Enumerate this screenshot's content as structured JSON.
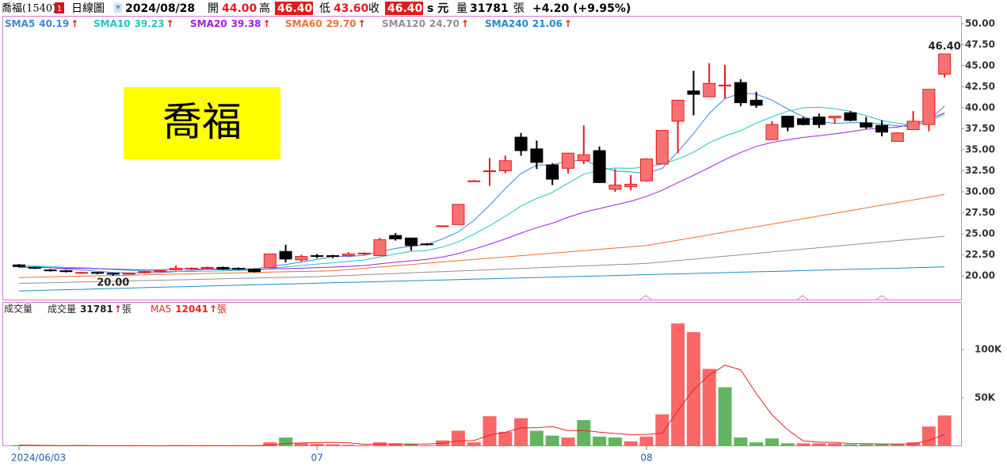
{
  "header": {
    "name": "喬福(1540)",
    "badge": "1",
    "period": "日線圖",
    "date": "2024/08/28",
    "open_label": "開",
    "open": "44.00",
    "high_label": "高",
    "high": "46.40",
    "low_label": "低",
    "low": "43.60",
    "close_label": "收",
    "close": "46.40",
    "currency": "s 元",
    "volume_label": "量",
    "volume": "31781",
    "volume_unit": "張",
    "change": "+4.20 (+9.95%)"
  },
  "watermark": "喬福",
  "chart_data": [
    {
      "type": "candlestick",
      "up_color": "#f87171",
      "up_edge": "#e41b1b",
      "down_color": "#000000",
      "open": [
        21.3,
        21.0,
        20.7,
        20.6,
        20.3,
        20.4,
        20.3,
        20.2,
        20.4,
        20.5,
        20.7,
        20.8,
        20.9,
        21.0,
        20.9,
        20.8,
        21.0,
        22.9,
        21.9,
        22.4,
        22.4,
        22.4,
        22.6,
        22.4,
        24.8,
        24.5,
        23.8,
        25.95,
        26.1,
        31.3,
        32.4,
        32.5,
        36.5,
        35.1,
        33.2,
        32.8,
        33.7,
        34.9,
        30.3,
        30.6,
        31.3,
        33.3,
        38.4,
        42.0,
        41.3,
        42.6,
        43.0,
        40.9,
        36.2,
        39.0,
        38.7,
        38.9,
        38.8,
        39.4,
        38.2,
        37.9,
        36.0,
        37.4,
        38.0,
        44.0
      ],
      "high": [
        21.4,
        21.1,
        20.8,
        20.7,
        20.5,
        20.45,
        20.35,
        20.4,
        20.6,
        20.7,
        21.2,
        21.0,
        21.1,
        21.1,
        21.0,
        20.9,
        22.6,
        23.7,
        22.5,
        22.6,
        22.5,
        22.8,
        22.8,
        24.5,
        25.1,
        24.5,
        23.9,
        25.95,
        28.5,
        31.4,
        34.0,
        34.3,
        37.0,
        36.1,
        33.4,
        34.6,
        37.9,
        35.4,
        32.7,
        32.0,
        34.0,
        37.3,
        40.9,
        44.4,
        45.3,
        45.1,
        43.4,
        41.9,
        38.4,
        39.0,
        38.9,
        39.3,
        39.0,
        39.6,
        38.9,
        38.5,
        37.1,
        39.6,
        42.2,
        46.4
      ],
      "low": [
        21.0,
        20.8,
        20.5,
        20.4,
        20.3,
        20.2,
        20.0,
        20.2,
        20.3,
        20.4,
        20.6,
        20.7,
        20.8,
        20.7,
        20.7,
        20.4,
        21.0,
        21.6,
        21.7,
        22.1,
        22.1,
        22.3,
        22.5,
        22.4,
        24.2,
        23.0,
        23.6,
        25.95,
        26.1,
        31.2,
        30.7,
        32.2,
        34.3,
        32.7,
        30.8,
        32.2,
        33.3,
        31.1,
        30.0,
        30.2,
        31.2,
        33.3,
        34.6,
        39.1,
        41.3,
        41.1,
        40.2,
        40.0,
        36.2,
        37.2,
        37.9,
        37.6,
        38.1,
        38.4,
        37.5,
        36.6,
        36.0,
        37.4,
        37.2,
        43.6
      ],
      "close": [
        21.1,
        20.9,
        20.6,
        20.5,
        20.4,
        20.3,
        20.2,
        20.3,
        20.5,
        20.6,
        20.9,
        20.9,
        21.0,
        20.8,
        20.8,
        20.5,
        22.6,
        22.0,
        22.3,
        22.3,
        22.3,
        22.6,
        22.7,
        24.3,
        24.4,
        23.6,
        23.7,
        25.95,
        28.5,
        31.3,
        32.5,
        33.7,
        34.9,
        33.5,
        31.5,
        34.6,
        34.4,
        31.1,
        30.8,
        30.9,
        33.9,
        37.3,
        40.9,
        41.6,
        42.9,
        42.7,
        40.6,
        40.3,
        38.0,
        37.7,
        38.0,
        38.0,
        39.0,
        38.5,
        37.7,
        37.1,
        37.0,
        38.4,
        42.2,
        46.4
      ],
      "series": [
        {
          "name": "SMA5",
          "color": "#3f86d8",
          "last_label": "40.19",
          "trend": "↑",
          "values": [
            21.2,
            21.1,
            20.95,
            20.8,
            20.7,
            20.54,
            20.4,
            20.34,
            20.34,
            20.38,
            20.5,
            20.64,
            20.78,
            20.84,
            20.88,
            20.8,
            21.14,
            21.34,
            21.64,
            21.94,
            22.3,
            22.3,
            22.44,
            22.84,
            23.26,
            23.52,
            23.74,
            24.39,
            25.23,
            26.61,
            28.39,
            30.39,
            32.18,
            33.18,
            33.22,
            33.64,
            33.78,
            33.02,
            32.48,
            32.36,
            32.22,
            32.8,
            34.76,
            36.92,
            39.32,
            41.08,
            41.74,
            41.62,
            40.9,
            39.86,
            38.92,
            38.4,
            38.14,
            38.24,
            38.24,
            38.06,
            37.86,
            37.74,
            38.48,
            40.19
          ]
        },
        {
          "name": "SMA10",
          "color": "#1fc3c8",
          "last_label": "39.23",
          "trend": "↑",
          "values": [
            21.2,
            21.15,
            21.1,
            21.0,
            20.95,
            20.87,
            20.75,
            20.65,
            20.57,
            20.54,
            20.52,
            20.52,
            20.56,
            20.59,
            20.63,
            20.65,
            20.89,
            21.06,
            21.24,
            21.41,
            21.55,
            21.72,
            21.89,
            22.24,
            22.6,
            22.91,
            23.02,
            23.42,
            24.04,
            24.94,
            25.96,
            27.07,
            28.29,
            29.21,
            29.92,
            31.02,
            32.09,
            32.6,
            32.83,
            32.79,
            32.93,
            33.29,
            33.89,
            34.7,
            35.84,
            36.65,
            37.27,
            38.19,
            38.91,
            39.59,
            40.0,
            40.07,
            39.88,
            39.57,
            39.05,
            38.49,
            38.13,
            37.94,
            38.36,
            39.23
          ]
        },
        {
          "name": "SMA20",
          "color": "#a11fe0",
          "last_label": "39.38",
          "trend": "↑",
          "values": [
            21.0,
            21.0,
            20.95,
            20.9,
            20.9,
            20.85,
            20.8,
            20.75,
            20.7,
            20.7,
            20.85,
            20.8,
            20.78,
            20.75,
            20.75,
            20.76,
            20.82,
            20.86,
            20.91,
            20.98,
            21.04,
            21.12,
            21.23,
            21.42,
            21.62,
            21.78,
            21.96,
            22.24,
            22.64,
            23.18,
            23.76,
            24.4,
            25.09,
            25.73,
            26.26,
            26.97,
            27.56,
            28.01,
            28.44,
            28.87,
            29.45,
            30.18,
            31.09,
            31.96,
            32.88,
            33.84,
            34.68,
            35.4,
            35.87,
            36.19,
            36.47,
            36.68,
            36.89,
            37.14,
            37.45,
            37.57,
            37.7,
            38.07,
            38.64,
            39.38
          ]
        },
        {
          "name": "SMA60",
          "color": "#f0702c",
          "last_label": "29.70",
          "trend": "↑",
          "values": [
            19.8,
            19.84,
            19.88,
            19.92,
            19.96,
            20.0,
            20.04,
            20.08,
            20.12,
            20.16,
            20.2,
            20.24,
            20.28,
            20.32,
            20.36,
            20.4,
            20.44,
            20.48,
            20.52,
            20.56,
            20.6,
            20.75,
            20.9,
            21.05,
            21.2,
            21.35,
            21.5,
            21.65,
            21.8,
            21.95,
            22.1,
            22.25,
            22.4,
            22.55,
            22.7,
            22.85,
            23.0,
            23.15,
            23.3,
            23.45,
            23.6,
            23.92,
            24.24,
            24.56,
            24.88,
            25.2,
            25.52,
            25.84,
            26.16,
            26.48,
            26.8,
            27.12,
            27.44,
            27.76,
            28.08,
            28.4,
            28.72,
            29.04,
            29.36,
            29.7
          ]
        },
        {
          "name": "SMA120",
          "color": "#909090",
          "last_label": "24.70",
          "trend": "↑",
          "values": [
            19.1,
            19.14,
            19.18,
            19.23,
            19.27,
            19.31,
            19.35,
            19.39,
            19.44,
            19.48,
            19.52,
            19.56,
            19.6,
            19.65,
            19.69,
            19.73,
            19.77,
            19.81,
            19.86,
            19.9,
            19.98,
            20.05,
            20.13,
            20.2,
            20.28,
            20.35,
            20.43,
            20.5,
            20.58,
            20.65,
            20.73,
            20.8,
            20.88,
            20.95,
            21.03,
            21.1,
            21.18,
            21.25,
            21.33,
            21.4,
            21.48,
            21.65,
            21.82,
            21.99,
            22.16,
            22.33,
            22.5,
            22.67,
            22.84,
            23.01,
            23.18,
            23.35,
            23.52,
            23.69,
            23.86,
            24.03,
            24.2,
            24.37,
            24.54,
            24.7
          ]
        },
        {
          "name": "SMA240",
          "color": "#1b8dc9",
          "last_label": "21.06",
          "trend": "↑",
          "values": [
            18.2,
            18.25,
            18.3,
            18.35,
            18.39,
            18.44,
            18.49,
            18.54,
            18.59,
            18.64,
            18.69,
            18.73,
            18.78,
            18.83,
            18.88,
            18.93,
            18.98,
            19.02,
            19.07,
            19.12,
            19.17,
            19.22,
            19.27,
            19.31,
            19.36,
            19.41,
            19.46,
            19.51,
            19.56,
            19.61,
            19.65,
            19.7,
            19.75,
            19.8,
            19.85,
            19.9,
            19.94,
            19.99,
            20.04,
            20.09,
            20.14,
            20.19,
            20.23,
            20.28,
            20.33,
            20.38,
            20.43,
            20.48,
            20.52,
            20.57,
            20.62,
            20.67,
            20.72,
            20.77,
            20.81,
            20.86,
            20.91,
            20.96,
            21.01,
            21.06
          ]
        }
      ],
      "annotations": [
        {
          "label": "46.40",
          "value": 46.4
        },
        {
          "label": "20.00",
          "value": 20.0
        }
      ],
      "ylim": [
        17.17,
        50.94
      ],
      "yticks": [
        {
          "value": 20,
          "label": "20.00"
        },
        {
          "value": 22.5,
          "label": "22.50"
        },
        {
          "value": 25,
          "label": "25.00"
        },
        {
          "value": 27.5,
          "label": "27.50"
        },
        {
          "value": 30,
          "label": "30.00"
        },
        {
          "value": 32.5,
          "label": "32.50"
        },
        {
          "value": 35,
          "label": "35.00"
        },
        {
          "value": 37.5,
          "label": "37.50"
        },
        {
          "value": 40,
          "label": "40.00"
        },
        {
          "value": 42.5,
          "label": "42.50"
        },
        {
          "value": 45,
          "label": "45.00"
        },
        {
          "value": 47.5,
          "label": "47.50"
        },
        {
          "value": 50,
          "label": "50.00"
        }
      ]
    },
    {
      "type": "bar",
      "title": "成交量",
      "categories": [
        "2024/06/03",
        null,
        null,
        null,
        null,
        null,
        null,
        null,
        null,
        null,
        null,
        null,
        null,
        null,
        null,
        null,
        null,
        null,
        null,
        "07",
        null,
        null,
        null,
        null,
        null,
        null,
        null,
        null,
        null,
        null,
        null,
        null,
        null,
        null,
        null,
        null,
        null,
        null,
        null,
        null,
        "08",
        null,
        null,
        null,
        null,
        null,
        null,
        null,
        null,
        null,
        null,
        null,
        null,
        null,
        null,
        null,
        null,
        null,
        null,
        null
      ],
      "series": [
        {
          "name": "成交量",
          "up_color": "#fb6666",
          "down_color": "#62b462",
          "last_label": "31781",
          "trend": "↑",
          "unit": "張",
          "values": [
            1200,
            800,
            500,
            500,
            1000,
            500,
            500,
            500,
            500,
            400,
            1000,
            500,
            500,
            500,
            500,
            500,
            4000,
            9000,
            3000,
            2500,
            2000,
            1500,
            1000,
            4000,
            3000,
            2000,
            1000,
            6000,
            16000,
            4000,
            31000,
            15000,
            29000,
            16000,
            11000,
            9000,
            27000,
            10000,
            9000,
            5000,
            10000,
            33000,
            127000,
            118000,
            80000,
            61000,
            9000,
            4000,
            8000,
            3000,
            3000,
            3000,
            3000,
            2000,
            2000,
            2000,
            2000,
            4000,
            20400,
            31781
          ]
        },
        {
          "name": "MA5",
          "color": "#e8231f",
          "last_label": "12041",
          "trend": "↑",
          "unit": "張",
          "values": [
            1200,
            1000,
            830,
            750,
            800,
            660,
            600,
            600,
            600,
            480,
            580,
            580,
            580,
            580,
            600,
            500,
            1200,
            2900,
            3400,
            3800,
            4100,
            3600,
            2000,
            2200,
            2300,
            2300,
            2200,
            3200,
            5600,
            5800,
            11600,
            14400,
            19000,
            19000,
            20400,
            16000,
            16400,
            14600,
            13200,
            12000,
            12200,
            13400,
            36800,
            58600,
            73600,
            83800,
            79000,
            54400,
            32400,
            17000,
            5400,
            4200,
            4000,
            2800,
            2600,
            2400,
            2200,
            2400,
            6080,
            12041
          ]
        }
      ],
      "ylim": [
        0,
        148400
      ],
      "yticks": [
        {
          "value": 50000,
          "label": "50K"
        },
        {
          "value": 100000,
          "label": "100K"
        }
      ]
    }
  ]
}
